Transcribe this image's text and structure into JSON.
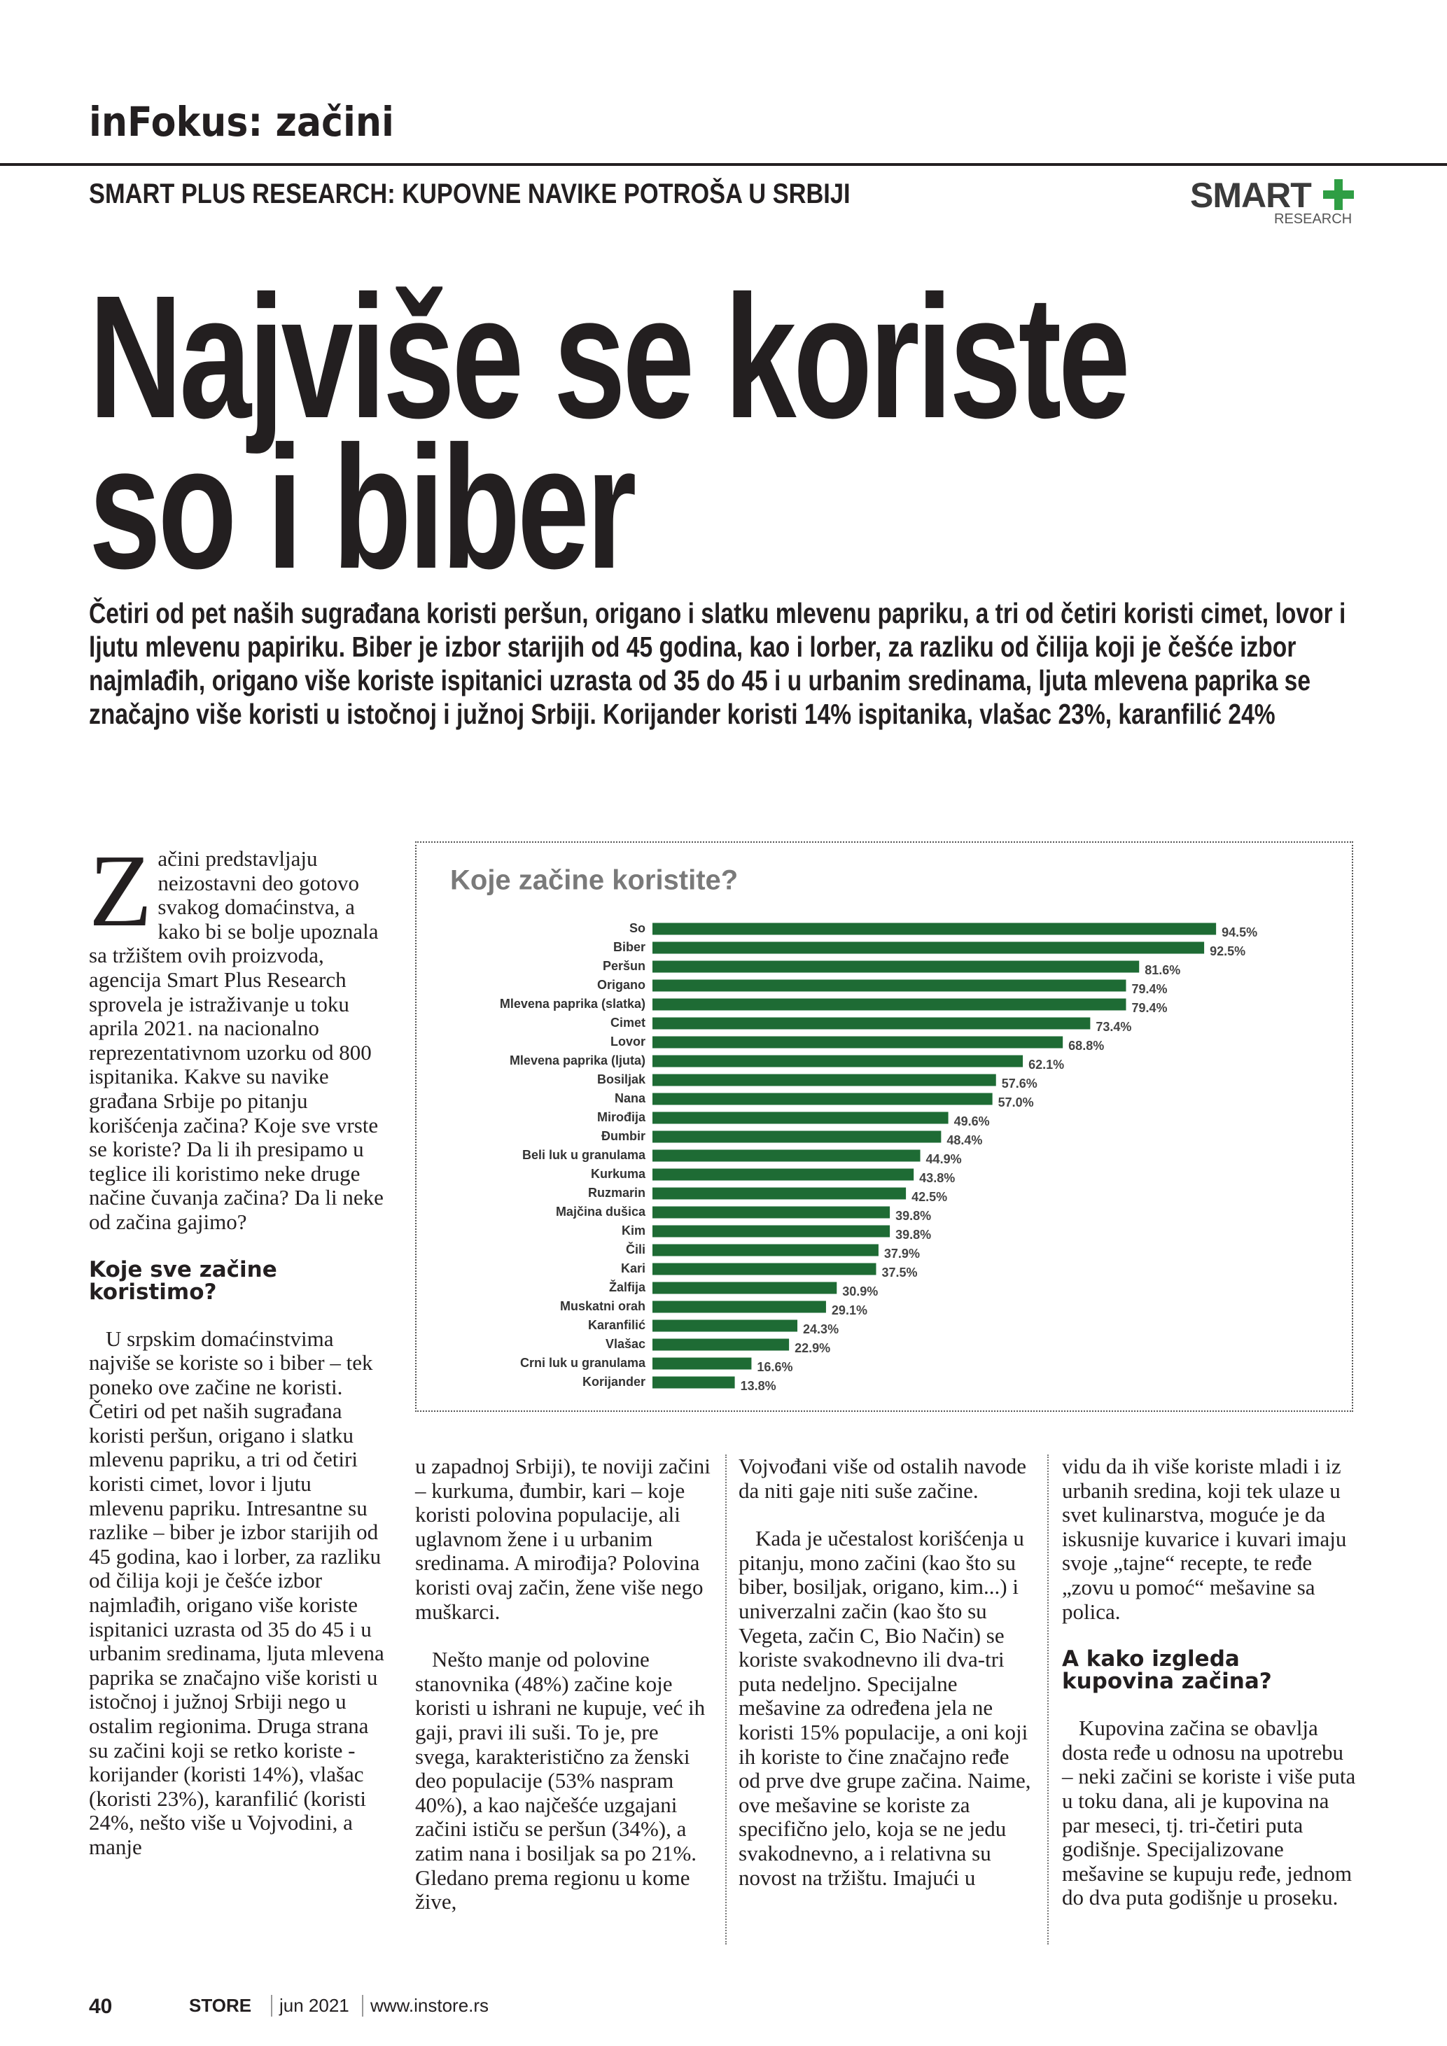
{
  "header": {
    "section": "inFokus: začini",
    "kicker": "SMART PLUS RESEARCH: KUPOVNE NAVIKE POTROŠA U SRBIJI",
    "logo_main": "SMART",
    "logo_sub": "RESEARCH"
  },
  "headline": [
    "Najviše se koriste",
    "so i biber"
  ],
  "lead": "Četiri od pet naših sugrađana koristi peršun, origano i slatku mlevenu papriku, a tri od četiri koristi cimet, lovor i ljutu mlevenu papiriku. Biber je izbor starijih od 45 godina, kao i lorber, za razliku od čilija koji je češće izbor najmlađih, origano više koriste ispitanici uzrasta od 35 do 45 i u urbanim sredinama, ljuta mlevena paprika se značajno više koristi u istočnoj i južnoj Srbiji. Korijander koristi 14% ispitanika, vlašac 23%, karanfilić 24%",
  "columns": [
    {
      "drop_cap": "Z",
      "intro": "ačini predstavljaju neizostavni deo gotovo svakog domaćinstva, a kako bi se bolje upoznala sa tržištem ovih proizvoda, agencija Smart Plus Research sprovela je istraživanje u toku aprila 2021. na nacionalno reprezentativnom uzorku od 800 ispitanika. Kakve su navike građana Srbije po pitanju korišćenja začina? Koje sve vrste se koriste? Da li ih presipamo u teglice ili koristimo neke druge načine čuvanja začina? Da li neke od začina gajimo?",
      "heading": "Koje sve začine koristimo?",
      "paragraphs": [
        "U srpskim domaćinstvima najviše se koriste so i biber – tek poneko ove začine ne koristi. Četiri od pet naših sugrađana koristi peršun, origano i slatku mlevenu papriku, a tri od četiri koristi cimet, lovor i ljutu mlevenu papriku. Intresantne su razlike – biber je izbor starijih od 45 godina, kao i lorber, za razliku od čilija koji je češće izbor najmlađih, origano više koriste ispitanici uzrasta od 35 do 45 i u urbanim sredinama, ljuta mlevena paprika se značajno više koristi u istočnoj i južnoj Srbiji nego u ostalim regionima. Druga strana su začini koji se retko koriste - korijander (koristi 14%), vlašac (koristi 23%), karanfilić (koristi 24%, nešto više u Vojvodini, a manje"
      ]
    },
    {
      "paragraphs": [
        "u zapadnoj Srbiji), te noviji začini – kurkuma, đumbir, kari – koje koristi polovina populacije, ali uglavnom žene i u urbanim sredinama. A mirođija? Polovina koristi ovaj začin, žene više nego muškarci.",
        "Nešto manje od polovine stanovnika (48%) začine koje koristi u ishrani ne kupuje, već ih gaji, pravi ili suši. To je, pre svega, karakteristično za ženski deo populacije (53% naspram 40%), a kao najčešće uzgajani začini ističu se peršun (34%), a zatim nana i bosiljak sa po 21%. Gledano prema regionu u kome žive,"
      ]
    },
    {
      "paragraphs": [
        "Vojvođani više od ostalih navode da niti gaje niti suše začine.",
        "Kada je učestalost korišćenja u pitanju, mono začini (kao što su biber, bosiljak, origano, kim...) i univerzalni začin (kao što su Vegeta, začin C, Bio Način) se koriste svakodnevno ili dva-tri puta nedeljno. Specijalne mešavine za određena jela ne koristi 15% populacije, a oni koji ih koriste to čine značajno ređe od prve dve grupe začina. Naime, ove mešavine se koriste za specifično jelo, koja se ne jedu svakodnevno, a i relativna su novost na tržištu. Imajući u"
      ]
    },
    {
      "paragraphs": [
        "vidu da ih više koriste mladi i iz urbanih sredina, koji tek ulaze u svet kulinarstva, moguće je da iskusnije kuvarice i kuvari imaju svoje „tajne“ recepte, te ređe „zovu u pomoć“ mešavine sa polica."
      ],
      "heading": "A kako izgleda kupovina začina?",
      "paragraphs_after": [
        "Kupovina začina se obavlja dosta ređe u odnosu na upotrebu – neki začini se koriste i više puta u toku dana, ali je kupovina na par meseci, tj. tri-četiri puta godišnje. Specijalizovane mešavine se kupuju ređe, jednom do dva puta godišnje u proseku."
      ]
    }
  ],
  "chart_data": {
    "type": "bar",
    "orientation": "horizontal",
    "title": "Koje začine koristite?",
    "color": "#1e6b34",
    "categories": [
      "So",
      "Biber",
      "Peršun",
      "Origano",
      "Mlevena paprika (slatka)",
      "Cimet",
      "Lovor",
      "Mlevena paprika (ljuta)",
      "Bosiljak",
      "Nana",
      "Mirođija",
      "Đumbir",
      "Beli luk u granulama",
      "Kurkuma",
      "Ruzmarin",
      "Majčina dušica",
      "Kim",
      "Čili",
      "Kari",
      "Žalfija",
      "Muskatni orah",
      "Karanfilić",
      "Vlašac",
      "Crni luk u granulama",
      "Korijander"
    ],
    "values": [
      94.5,
      92.5,
      81.6,
      79.4,
      79.4,
      73.4,
      68.8,
      62.1,
      57.6,
      57.0,
      49.6,
      48.4,
      44.9,
      43.8,
      42.5,
      39.8,
      39.8,
      37.9,
      37.5,
      30.9,
      29.1,
      24.3,
      22.9,
      16.6,
      13.8
    ],
    "value_labels": [
      "94.5%",
      "92.5%",
      "81.6%",
      "79.4%",
      "79.4%",
      "73.4%",
      "68.8%",
      "62.1%",
      "57.6%",
      "57.0%",
      "49.6%",
      "48.4%",
      "44.9%",
      "43.8%",
      "42.5%",
      "39.8%",
      "39.8%",
      "37.9%",
      "37.5%",
      "30.9%",
      "29.1%",
      "24.3%",
      "22.9%",
      "16.6%",
      "13.8%"
    ]
  },
  "footer": {
    "page": "40",
    "brand": "STORE",
    "issue": "jun 2021",
    "url": "www.instore.rs"
  }
}
